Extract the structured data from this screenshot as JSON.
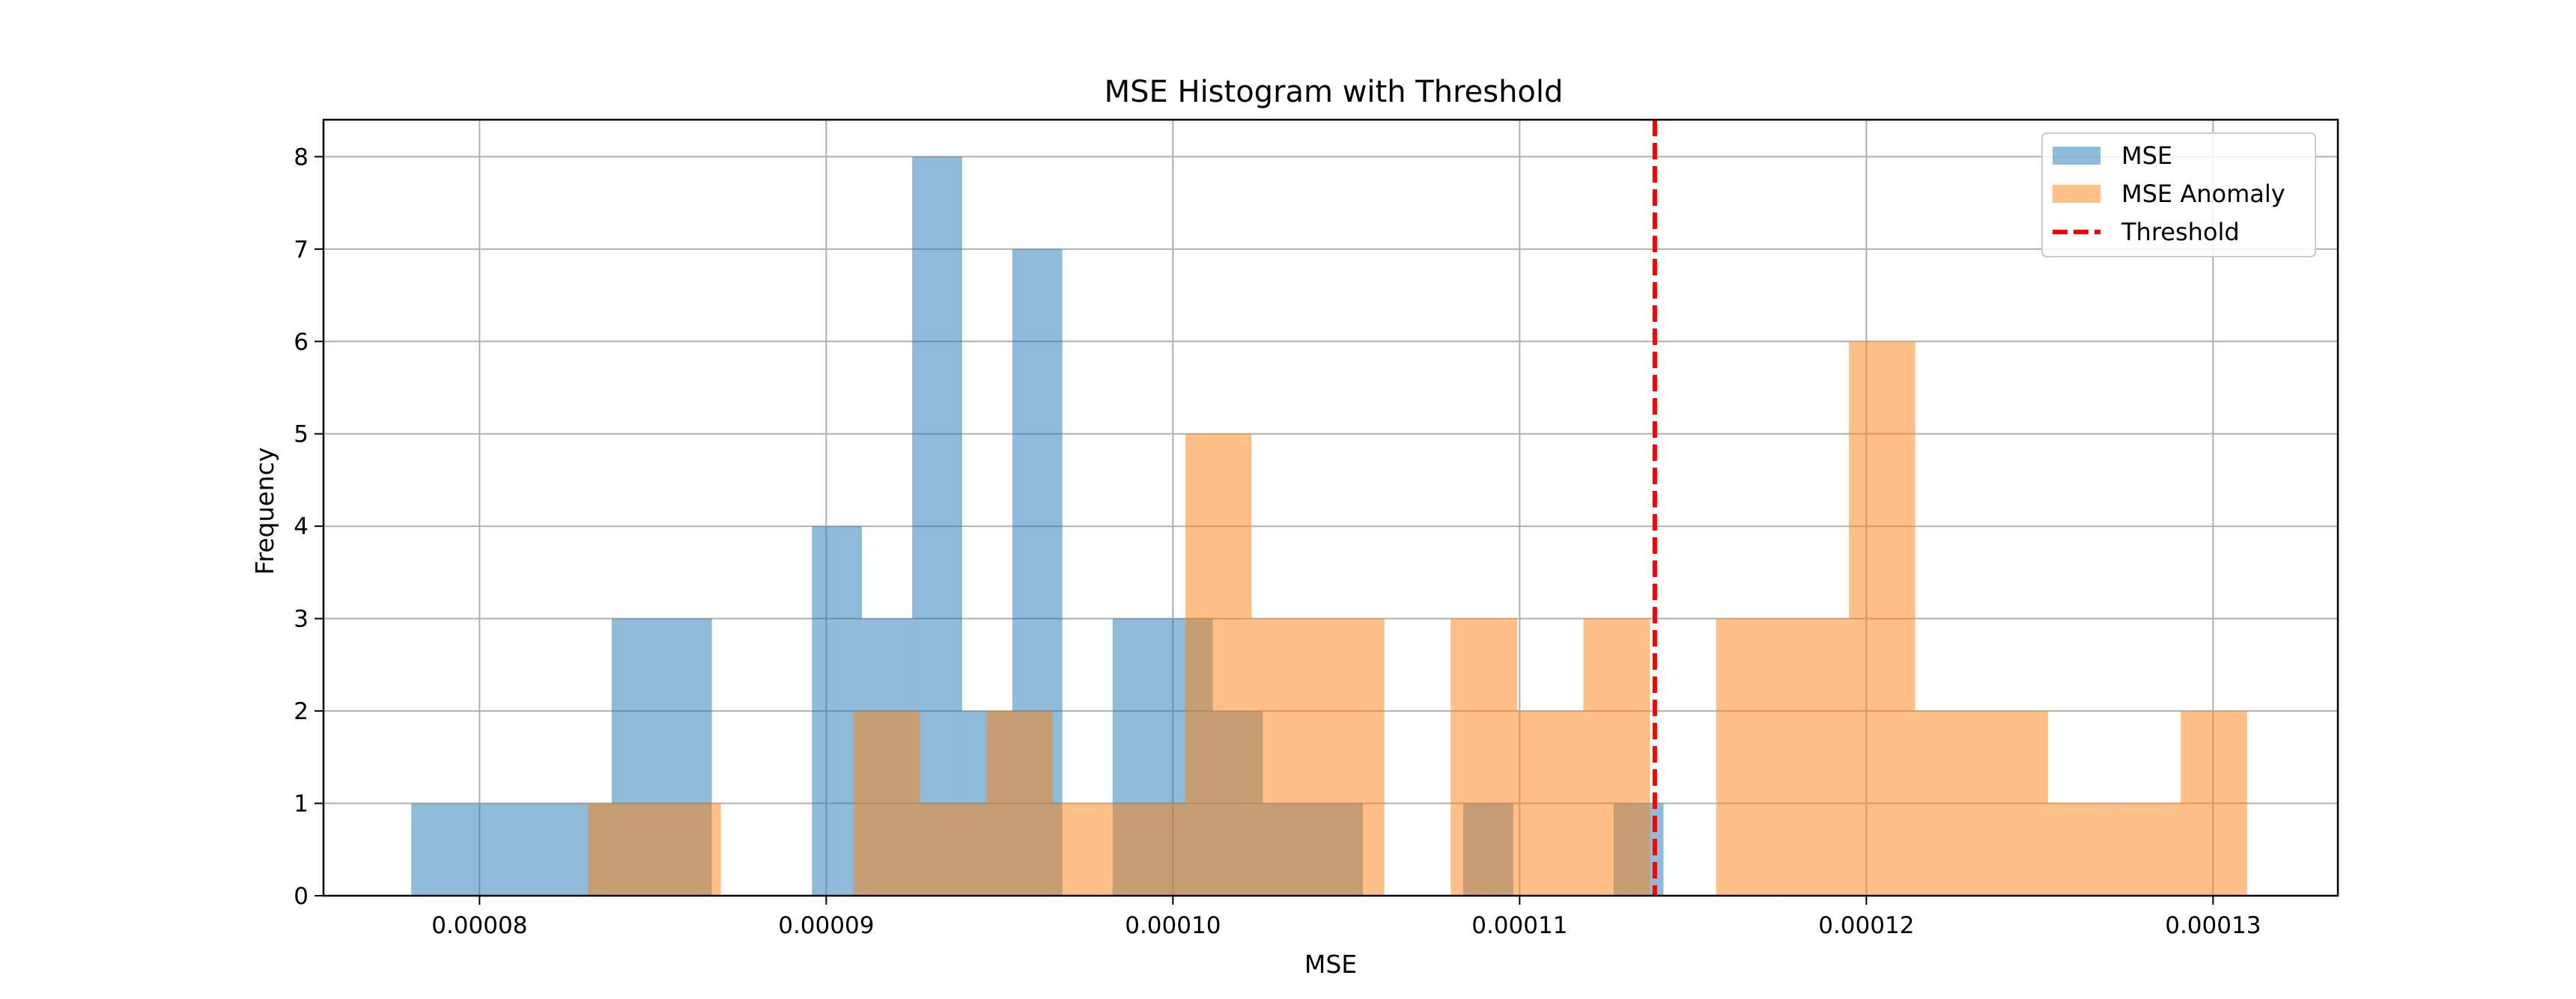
{
  "chart_data": {
    "type": "histogram",
    "title": "MSE Histogram with Threshold",
    "xlabel": "MSE",
    "ylabel": "Frequency",
    "xlim": [
      7.55e-05,
      0.0001336
    ],
    "ylim": [
      0,
      8.4
    ],
    "grid": true,
    "legend_position": "top-right",
    "x_ticks": [
      {
        "value": 8e-05,
        "label": "0.00008"
      },
      {
        "value": 9e-05,
        "label": "0.00009"
      },
      {
        "value": 0.0001,
        "label": "0.00010"
      },
      {
        "value": 0.00011,
        "label": "0.00011"
      },
      {
        "value": 0.00012,
        "label": "0.00012"
      },
      {
        "value": 0.00013,
        "label": "0.00013"
      }
    ],
    "y_ticks": [
      {
        "value": 0,
        "label": "0"
      },
      {
        "value": 1,
        "label": "1"
      },
      {
        "value": 2,
        "label": "2"
      },
      {
        "value": 3,
        "label": "3"
      },
      {
        "value": 4,
        "label": "4"
      },
      {
        "value": 5,
        "label": "5"
      },
      {
        "value": 6,
        "label": "6"
      },
      {
        "value": 7,
        "label": "7"
      },
      {
        "value": 8,
        "label": "8"
      }
    ],
    "series": [
      {
        "name": "MSE",
        "color": "#1f77b4",
        "alpha": 0.5,
        "bins": [
          {
            "start": 7.803e-05,
            "end": 8.092e-05,
            "count": 1
          },
          {
            "start": 8.092e-05,
            "end": 8.381e-05,
            "count": 1
          },
          {
            "start": 8.381e-05,
            "end": 8.67e-05,
            "count": 3
          },
          {
            "start": 8.67e-05,
            "end": 8.959e-05,
            "count": 0
          },
          {
            "start": 8.959e-05,
            "end": 9.103e-05,
            "count": 4
          },
          {
            "start": 9.103e-05,
            "end": 9.248e-05,
            "count": 3
          },
          {
            "start": 9.248e-05,
            "end": 9.392e-05,
            "count": 8
          },
          {
            "start": 9.392e-05,
            "end": 9.537e-05,
            "count": 2
          },
          {
            "start": 9.537e-05,
            "end": 9.681e-05,
            "count": 7
          },
          {
            "start": 9.681e-05,
            "end": 9.826e-05,
            "count": 0
          },
          {
            "start": 9.826e-05,
            "end": 9.97e-05,
            "count": 3
          },
          {
            "start": 9.97e-05,
            "end": 0.00010115,
            "count": 3
          },
          {
            "start": 0.00010115,
            "end": 0.00010259,
            "count": 2
          },
          {
            "start": 0.00010259,
            "end": 0.00010404,
            "count": 1
          },
          {
            "start": 0.00010404,
            "end": 0.00010548,
            "count": 1
          },
          {
            "start": 0.00010548,
            "end": 0.00010837,
            "count": 0
          },
          {
            "start": 0.00010837,
            "end": 0.00010982,
            "count": 1
          },
          {
            "start": 0.00010982,
            "end": 0.00011271,
            "count": 0
          },
          {
            "start": 0.00011271,
            "end": 0.00011415,
            "count": 1
          }
        ]
      },
      {
        "name": "MSE Anomaly",
        "color": "#ff7f0e",
        "alpha": 0.5,
        "bins": [
          {
            "start": 8.313e-05,
            "end": 8.504e-05,
            "count": 1
          },
          {
            "start": 8.504e-05,
            "end": 8.696e-05,
            "count": 1
          },
          {
            "start": 8.696e-05,
            "end": 9.079e-05,
            "count": 0
          },
          {
            "start": 9.079e-05,
            "end": 9.27e-05,
            "count": 2
          },
          {
            "start": 9.27e-05,
            "end": 9.462e-05,
            "count": 1
          },
          {
            "start": 9.462e-05,
            "end": 9.653e-05,
            "count": 2
          },
          {
            "start": 9.653e-05,
            "end": 9.844e-05,
            "count": 1
          },
          {
            "start": 9.844e-05,
            "end": 0.00010036,
            "count": 1
          },
          {
            "start": 0.00010036,
            "end": 0.00010227,
            "count": 5
          },
          {
            "start": 0.00010227,
            "end": 0.00010419,
            "count": 3
          },
          {
            "start": 0.00010419,
            "end": 0.0001061,
            "count": 3
          },
          {
            "start": 0.0001061,
            "end": 0.00010801,
            "count": 0
          },
          {
            "start": 0.00010801,
            "end": 0.00010993,
            "count": 3
          },
          {
            "start": 0.00010993,
            "end": 0.00011184,
            "count": 2
          },
          {
            "start": 0.00011184,
            "end": 0.00011376,
            "count": 3
          },
          {
            "start": 0.00011376,
            "end": 0.00011567,
            "count": 0
          },
          {
            "start": 0.00011567,
            "end": 0.00011759,
            "count": 3
          },
          {
            "start": 0.00011759,
            "end": 0.0001195,
            "count": 3
          },
          {
            "start": 0.0001195,
            "end": 0.00012141,
            "count": 6
          },
          {
            "start": 0.00012141,
            "end": 0.00012333,
            "count": 2
          },
          {
            "start": 0.00012333,
            "end": 0.00012524,
            "count": 2
          },
          {
            "start": 0.00012524,
            "end": 0.00012716,
            "count": 1
          },
          {
            "start": 0.00012716,
            "end": 0.00012907,
            "count": 1
          },
          {
            "start": 0.00012907,
            "end": 0.00013098,
            "count": 2
          }
        ]
      }
    ],
    "threshold": {
      "name": "Threshold",
      "value": 0.0001139,
      "color": "#ff0000",
      "style": "dashed"
    }
  }
}
